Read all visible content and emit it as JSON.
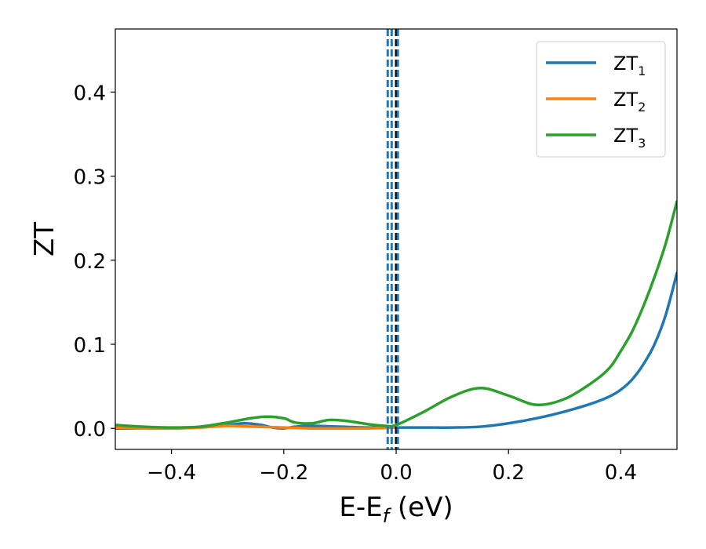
{
  "chart_data": {
    "type": "line",
    "xlabel_main": "E-E",
    "xlabel_sub": "f",
    "xlabel_tail": " (eV)",
    "ylabel": "ZT",
    "xlim": [
      -0.5,
      0.5
    ],
    "ylim": [
      -0.025,
      0.475
    ],
    "xticks": [
      {
        "value": -0.4,
        "label": "−0.4"
      },
      {
        "value": -0.2,
        "label": "−0.2"
      },
      {
        "value": 0.0,
        "label": "0.0"
      },
      {
        "value": 0.2,
        "label": "0.2"
      },
      {
        "value": 0.4,
        "label": "0.4"
      }
    ],
    "yticks": [
      {
        "value": 0.0,
        "label": "0.0"
      },
      {
        "value": 0.1,
        "label": "0.1"
      },
      {
        "value": 0.2,
        "label": "0.2"
      },
      {
        "value": 0.3,
        "label": "0.3"
      },
      {
        "value": 0.4,
        "label": "0.4"
      }
    ],
    "legend_position": "upper-right",
    "vlines": [
      {
        "x": -0.015,
        "color": "#1f77b4",
        "style": "dashed"
      },
      {
        "x": -0.008,
        "color": "#1f77b4",
        "style": "dashed"
      },
      {
        "x": 0.0,
        "color": "#000000",
        "style": "dashed"
      },
      {
        "x": 0.003,
        "color": "#1f77b4",
        "style": "dashed"
      }
    ],
    "series": [
      {
        "name_main": "ZT",
        "name_sub": "1",
        "color": "#1f77b4",
        "x": [
          -0.5,
          -0.45,
          -0.4,
          -0.35,
          -0.3,
          -0.27,
          -0.24,
          -0.22,
          -0.2,
          -0.18,
          -0.15,
          -0.1,
          -0.05,
          0.0,
          0.05,
          0.1,
          0.15,
          0.2,
          0.25,
          0.3,
          0.35,
          0.38,
          0.4,
          0.42,
          0.44,
          0.46,
          0.48,
          0.5
        ],
        "y": [
          0.0,
          0.0,
          0.0,
          0.001,
          0.004,
          0.006,
          0.004,
          0.001,
          0.0,
          0.002,
          0.003,
          0.002,
          0.001,
          0.001,
          0.001,
          0.001,
          0.002,
          0.006,
          0.012,
          0.02,
          0.03,
          0.038,
          0.046,
          0.058,
          0.076,
          0.1,
          0.135,
          0.185
        ]
      },
      {
        "name_main": "ZT",
        "name_sub": "2",
        "color": "#ff7f0e",
        "x": [
          -0.5,
          -0.45,
          -0.4,
          -0.35,
          -0.3,
          -0.25,
          -0.2,
          -0.15,
          -0.12,
          -0.1,
          -0.05,
          0.0
        ],
        "y": [
          0.001,
          0.0,
          0.0,
          0.001,
          0.003,
          0.002,
          0.001,
          0.0,
          0.0,
          0.0,
          0.0,
          0.001
        ]
      },
      {
        "name_main": "ZT",
        "name_sub": "3",
        "color": "#2ca02c",
        "x": [
          -0.5,
          -0.45,
          -0.4,
          -0.35,
          -0.3,
          -0.26,
          -0.23,
          -0.2,
          -0.18,
          -0.15,
          -0.12,
          -0.09,
          -0.05,
          -0.02,
          0.0,
          0.05,
          0.1,
          0.15,
          0.2,
          0.25,
          0.3,
          0.35,
          0.38,
          0.4,
          0.42,
          0.44,
          0.46,
          0.48,
          0.5
        ],
        "y": [
          0.004,
          0.002,
          0.001,
          0.002,
          0.007,
          0.012,
          0.014,
          0.012,
          0.007,
          0.006,
          0.01,
          0.009,
          0.005,
          0.003,
          0.004,
          0.02,
          0.038,
          0.048,
          0.039,
          0.028,
          0.035,
          0.055,
          0.072,
          0.092,
          0.115,
          0.145,
          0.18,
          0.22,
          0.27
        ]
      }
    ]
  }
}
